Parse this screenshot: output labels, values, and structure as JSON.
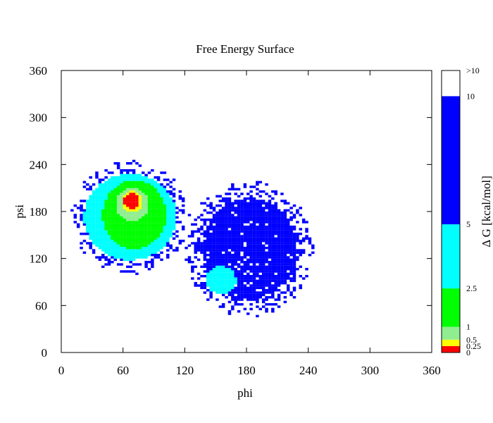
{
  "chart_data": {
    "type": "heatmap",
    "title": "Free Energy Surface",
    "xlabel": "phi",
    "ylabel": "psi",
    "xlim": [
      0,
      360
    ],
    "ylim": [
      0,
      360
    ],
    "xticks": [
      "0",
      "60",
      "120",
      "180",
      "240",
      "300",
      "360"
    ],
    "yticks": [
      "0",
      "60",
      "120",
      "180",
      "240",
      "300",
      "360"
    ],
    "grid": false,
    "colorbar": {
      "label": "Δ G [kcal/mol]",
      "placement": "right",
      "range": [
        0,
        11
      ],
      "bands": [
        {
          "from": 0,
          "to": 0.25,
          "color": "#ff0000"
        },
        {
          "from": 0.25,
          "to": 0.5,
          "color": "#ffff00"
        },
        {
          "from": 0.5,
          "to": 1,
          "color": "#90ee90"
        },
        {
          "from": 1,
          "to": 2.5,
          "color": "#00ff00"
        },
        {
          "from": 2.5,
          "to": 5,
          "color": "#00ffff"
        },
        {
          "from": 5,
          "to": 10,
          "color": "#0000ff"
        },
        {
          "from": 10,
          "to": 11,
          "color": "#ffffff"
        }
      ],
      "ticks": [
        {
          "value": 0,
          "label": "0"
        },
        {
          "value": 0.25,
          "label": "0.25"
        },
        {
          "value": 0.5,
          "label": "0.5"
        },
        {
          "value": 1,
          "label": "1"
        },
        {
          "value": 2.5,
          "label": "2.5"
        },
        {
          "value": 5,
          "label": "5"
        },
        {
          "value": 10,
          "label": "10"
        },
        {
          "value": 11,
          "label": ">10"
        }
      ]
    },
    "regions": [
      {
        "level": 7,
        "phi": [
          10,
          125
        ],
        "psi": [
          100,
          245
        ],
        "color": "#0000ff"
      },
      {
        "level": 6,
        "phi": [
          120,
          245
        ],
        "psi": [
          45,
          220
        ],
        "color": "#0000ff"
      },
      {
        "level": 5,
        "phi": [
          22,
          112
        ],
        "psi": [
          118,
          228
        ],
        "color": "#00ffff"
      },
      {
        "level": 4,
        "phi": [
          40,
          102
        ],
        "psi": [
          132,
          220
        ],
        "color": "#00ff00"
      },
      {
        "level": 3,
        "phi": [
          53,
          85
        ],
        "psi": [
          168,
          210
        ],
        "color": "#90ee90"
      },
      {
        "level": 2,
        "phi": [
          59,
          79
        ],
        "psi": [
          180,
          206
        ],
        "color": "#ffff00"
      },
      {
        "level": 1,
        "phi": [
          61,
          76
        ],
        "psi": [
          183,
          203
        ],
        "color": "#ff0000"
      },
      {
        "level": 5,
        "phi": [
          140,
          170
        ],
        "psi": [
          75,
          110
        ],
        "color": "#00ffff"
      }
    ]
  }
}
